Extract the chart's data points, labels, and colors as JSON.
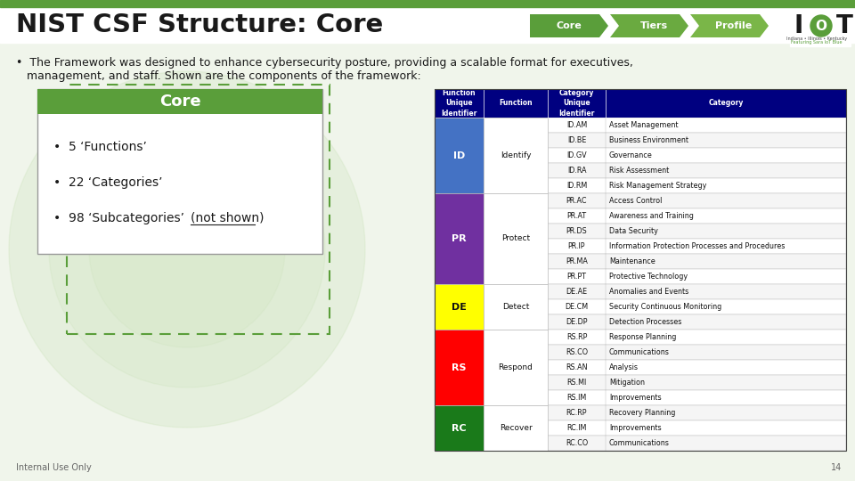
{
  "title": "NIST CSF Structure: Core",
  "nav_items": [
    "Core",
    "Tiers",
    "Profile"
  ],
  "top_bar_color": "#5a9e3a",
  "slide_bg": "#ffffff",
  "body_bg": "#f0f5eb",
  "core_box_title": "Core",
  "core_bullets": [
    "5 ‘Functions’",
    "22 ‘Categories’",
    "98 ‘Subcategories’ (not shown)"
  ],
  "core_box_color": "#5a9e3a",
  "nav_colors": [
    "#5a9e3a",
    "#6aaa40",
    "#7ab648"
  ],
  "table_header_color": "#000080",
  "table_border": "#bbbbbb",
  "functions": [
    {
      "id": "ID",
      "name": "Identify",
      "color": "#4472c4",
      "categories": [
        {
          "uid": "ID.AM",
          "name": "Asset Management"
        },
        {
          "uid": "ID.BE",
          "name": "Business Environment"
        },
        {
          "uid": "ID.GV",
          "name": "Governance"
        },
        {
          "uid": "ID.RA",
          "name": "Risk Assessment"
        },
        {
          "uid": "ID.RM",
          "name": "Risk Management Strategy"
        }
      ]
    },
    {
      "id": "PR",
      "name": "Protect",
      "color": "#7030a0",
      "categories": [
        {
          "uid": "PR.AC",
          "name": "Access Control"
        },
        {
          "uid": "PR.AT",
          "name": "Awareness and Training"
        },
        {
          "uid": "PR.DS",
          "name": "Data Security"
        },
        {
          "uid": "PR.IP",
          "name": "Information Protection Processes and Procedures"
        },
        {
          "uid": "PR.MA",
          "name": "Maintenance"
        },
        {
          "uid": "PR.PT",
          "name": "Protective Technology"
        }
      ]
    },
    {
      "id": "DE",
      "name": "Detect",
      "color": "#ffff00",
      "categories": [
        {
          "uid": "DE.AE",
          "name": "Anomalies and Events"
        },
        {
          "uid": "DE.CM",
          "name": "Security Continuous Monitoring"
        },
        {
          "uid": "DE.DP",
          "name": "Detection Processes"
        }
      ]
    },
    {
      "id": "RS",
      "name": "Respond",
      "color": "#ff0000",
      "categories": [
        {
          "uid": "RS.RP",
          "name": "Response Planning"
        },
        {
          "uid": "RS.CO",
          "name": "Communications"
        },
        {
          "uid": "RS.AN",
          "name": "Analysis"
        },
        {
          "uid": "RS.MI",
          "name": "Mitigation"
        },
        {
          "uid": "RS.IM",
          "name": "Improvements"
        }
      ]
    },
    {
      "id": "RC",
      "name": "Recover",
      "color": "#1a7a1a",
      "categories": [
        {
          "uid": "RC.RP",
          "name": "Recovery Planning"
        },
        {
          "uid": "RC.IM",
          "name": "Improvements"
        },
        {
          "uid": "RC.CO",
          "name": "Communications"
        }
      ]
    }
  ],
  "footer_text": "Internal Use Only",
  "page_number": "14"
}
